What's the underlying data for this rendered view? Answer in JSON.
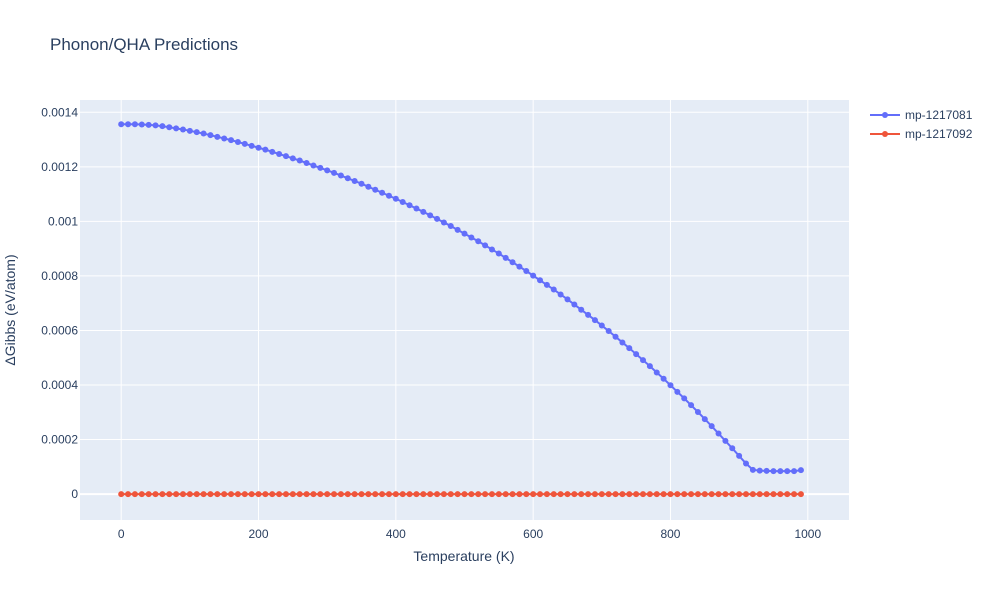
{
  "chart_data": {
    "type": "line",
    "title": "Phonon/QHA Predictions",
    "xlabel": "Temperature (K)",
    "ylabel": "ΔGibbs (eV/atom)",
    "xlim": [
      -60,
      1060
    ],
    "ylim": [
      -9.5e-05,
      0.001445
    ],
    "x_ticks": [
      0,
      200,
      400,
      600,
      800,
      1000
    ],
    "x_tick_labels": [
      "0",
      "200",
      "400",
      "600",
      "800",
      "1000"
    ],
    "y_ticks": [
      0,
      0.0002,
      0.0004,
      0.0006,
      0.0008,
      0.001,
      0.0012,
      0.0014
    ],
    "y_tick_labels": [
      "0",
      "0.0002",
      "0.0004",
      "0.0006",
      "0.0008",
      "0.001",
      "0.0012",
      "0.0014"
    ],
    "grid": true,
    "legend_position": "top-right",
    "x": [
      0,
      10,
      20,
      30,
      40,
      50,
      60,
      70,
      80,
      90,
      100,
      110,
      120,
      130,
      140,
      150,
      160,
      170,
      180,
      190,
      200,
      210,
      220,
      230,
      240,
      250,
      260,
      270,
      280,
      290,
      300,
      310,
      320,
      330,
      340,
      350,
      360,
      370,
      380,
      390,
      400,
      410,
      420,
      430,
      440,
      450,
      460,
      470,
      480,
      490,
      500,
      510,
      520,
      530,
      540,
      550,
      560,
      570,
      580,
      590,
      600,
      610,
      620,
      630,
      640,
      650,
      660,
      670,
      680,
      690,
      700,
      710,
      720,
      730,
      740,
      750,
      760,
      770,
      780,
      790,
      800,
      810,
      820,
      830,
      840,
      850,
      860,
      870,
      880,
      890,
      900,
      910,
      920,
      930,
      940,
      950,
      960,
      970,
      980,
      990
    ],
    "series": [
      {
        "name": "mp-1217081",
        "color": "#636efa",
        "values": [
          0.001356,
          0.001356,
          0.001356,
          0.001355,
          0.001354,
          0.001352,
          0.001349,
          0.001345,
          0.001341,
          0.001337,
          0.001332,
          0.001327,
          0.001322,
          0.001316,
          0.00131,
          0.001304,
          0.001298,
          0.001291,
          0.001284,
          0.001277,
          0.00127,
          0.001263,
          0.001255,
          0.001247,
          0.001239,
          0.001231,
          0.001223,
          0.001214,
          0.001205,
          0.001196,
          0.001187,
          0.001178,
          0.001168,
          0.001158,
          0.001148,
          0.001138,
          0.001127,
          0.001116,
          0.001105,
          0.001094,
          0.001083,
          0.001071,
          0.001059,
          0.001047,
          0.001035,
          0.001022,
          0.001009,
          0.000996,
          0.000983,
          0.000969,
          0.000955,
          0.000941,
          0.000927,
          0.000912,
          0.000897,
          0.000882,
          0.000866,
          0.00085,
          0.000834,
          0.000818,
          0.000801,
          0.000784,
          0.000767,
          0.00075,
          0.000732,
          0.000714,
          0.000695,
          0.000676,
          0.000657,
          0.000638,
          0.000618,
          0.000598,
          0.000577,
          0.000556,
          0.000535,
          0.000513,
          0.000491,
          0.000469,
          0.000446,
          0.000423,
          0.000399,
          0.000375,
          0.000351,
          0.000326,
          0.000301,
          0.000275,
          0.000249,
          0.000222,
          0.000195,
          0.000168,
          0.00014,
          0.000112,
          8.9e-05,
          8.6e-05,
          8.5e-05,
          8.4e-05,
          8.4e-05,
          8.4e-05,
          8.4e-05,
          8.8e-05
        ]
      },
      {
        "name": "mp-1217092",
        "color": "#EF553B",
        "values": [
          0,
          0,
          0,
          0,
          0,
          0,
          0,
          0,
          0,
          0,
          0,
          0,
          0,
          0,
          0,
          0,
          0,
          0,
          0,
          0,
          0,
          0,
          0,
          0,
          0,
          0,
          0,
          0,
          0,
          0,
          0,
          0,
          0,
          0,
          0,
          0,
          0,
          0,
          0,
          0,
          0,
          0,
          0,
          0,
          0,
          0,
          0,
          0,
          0,
          0,
          0,
          0,
          0,
          0,
          0,
          0,
          0,
          0,
          0,
          0,
          0,
          0,
          0,
          0,
          0,
          0,
          0,
          0,
          0,
          0,
          0,
          0,
          0,
          0,
          0,
          0,
          0,
          0,
          0,
          0,
          0,
          0,
          0,
          0,
          0,
          0,
          0,
          0,
          0,
          0,
          0,
          0,
          0,
          0,
          0,
          0,
          0,
          0,
          0,
          0
        ]
      }
    ]
  }
}
